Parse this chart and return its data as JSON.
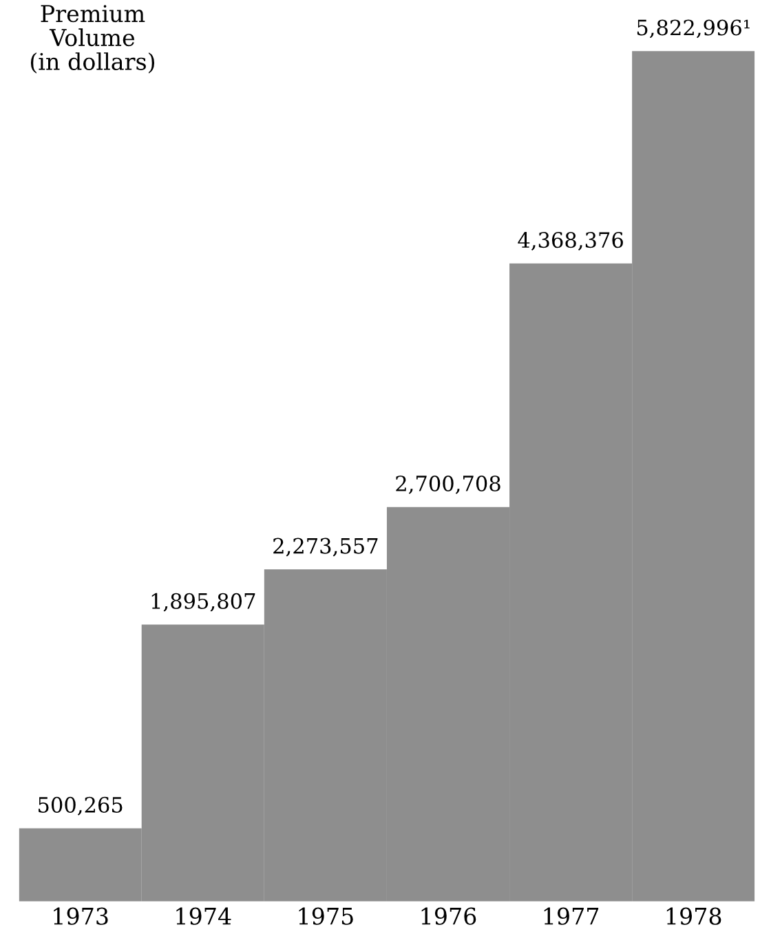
{
  "chart_data": {
    "type": "bar",
    "ylabel": "Premium\nVolume\n(in dollars)",
    "categories": [
      "1973",
      "1974",
      "1975",
      "1976",
      "1977",
      "1978"
    ],
    "values": [
      500265,
      1895807,
      2273557,
      2700708,
      4368376,
      5822996
    ],
    "value_labels": [
      "500,265",
      "1,895,807",
      "2,273,557",
      "2,700,708",
      "4,368,376",
      "5,822,996¹"
    ],
    "color": "#8e8e8e",
    "tick_labels": "x",
    "grid": false,
    "legend": false
  }
}
